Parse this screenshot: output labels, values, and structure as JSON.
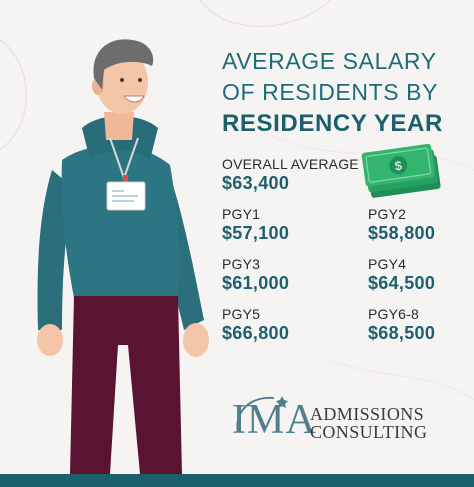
{
  "colors": {
    "background": "#f6f4f3",
    "teal": "#1c6070",
    "sweater": "#2c7582",
    "pants": "#5a1431",
    "hair": "#707070",
    "money": "#2fa86d"
  },
  "title": {
    "line1": "AVERAGE SALARY",
    "line2": "OF RESIDENTS BY",
    "line3": "RESIDENCY YEAR"
  },
  "overall": {
    "label": "OVERALL AVERAGE",
    "value": "$63,400"
  },
  "stats": [
    {
      "label": "PGY1",
      "value": "$57,100"
    },
    {
      "label": "PGY2",
      "value": "$58,800"
    },
    {
      "label": "PGY3",
      "value": "$61,000"
    },
    {
      "label": "PGY4",
      "value": "$64,500"
    },
    {
      "label": "PGY5",
      "value": "$66,800"
    },
    {
      "label": "PGY6-8",
      "value": "$68,500"
    }
  ],
  "logo": {
    "mark": "IMA",
    "line1": "ADMISSIONS",
    "line2": "CONSULTING"
  },
  "icons": [
    "person-illustration",
    "id-badge-icon",
    "money-stack-icon",
    "dollar-sign-icon"
  ]
}
